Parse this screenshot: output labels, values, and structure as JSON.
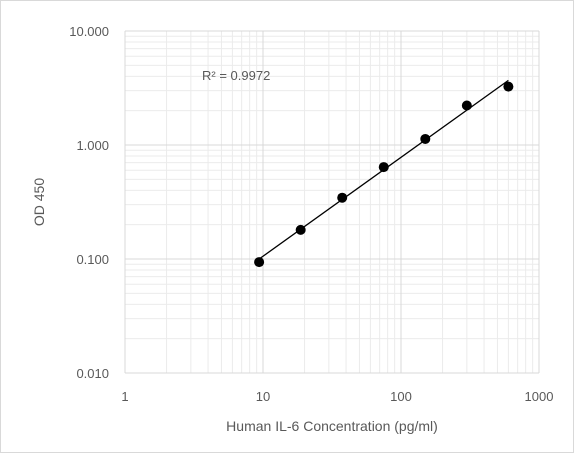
{
  "chart_data": {
    "type": "scatter",
    "xlabel": "Human IL-6 Concentration  (pg/ml)",
    "ylabel": "OD 450",
    "xscale": "log",
    "yscale": "log",
    "xlim": [
      1,
      1000
    ],
    "ylim": [
      0.01,
      10
    ],
    "x_ticks": [
      "1",
      "10",
      "100",
      "1000"
    ],
    "y_ticks": [
      "0.010",
      "0.100",
      "1.000",
      "10.000"
    ],
    "grid": true,
    "minor_grid": true,
    "legend": false,
    "annotation": "R² = 0.9972",
    "trendline": "power",
    "points": [
      {
        "x": 9.375,
        "y": 0.094
      },
      {
        "x": 18.75,
        "y": 0.18
      },
      {
        "x": 37.5,
        "y": 0.345
      },
      {
        "x": 75,
        "y": 0.64
      },
      {
        "x": 150,
        "y": 1.13
      },
      {
        "x": 300,
        "y": 2.22
      },
      {
        "x": 600,
        "y": 3.25
      }
    ],
    "colors": {
      "point": "#000000",
      "trendline": "#000000",
      "grid_major": "#d9d9d9",
      "grid_minor": "#ebebeb"
    }
  }
}
